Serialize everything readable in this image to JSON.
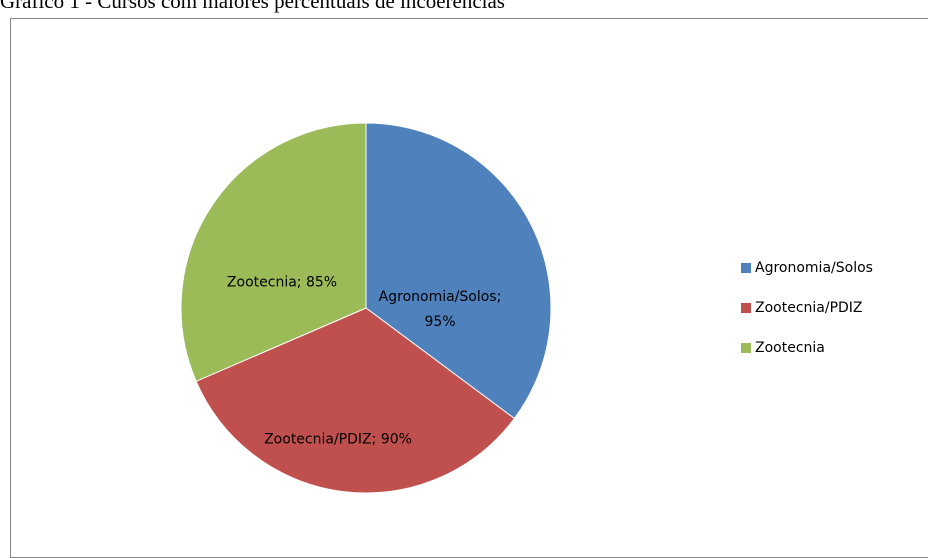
{
  "chart_data": {
    "type": "pie",
    "title": "Gráfico 1 - Cursos com maiores percentuais de incoerências",
    "categories": [
      "Agronomia/Solos",
      "Zootecnia/PDIZ",
      "Zootecnia"
    ],
    "values": [
      95,
      90,
      85
    ],
    "value_labels": [
      "Agronomia/Solos; 95%",
      "Zootecnia/PDIZ; 90%",
      "Zootecnia; 85%"
    ],
    "colors": [
      "#4f81bd",
      "#c0504d",
      "#9bbb59"
    ],
    "legend": "right"
  }
}
